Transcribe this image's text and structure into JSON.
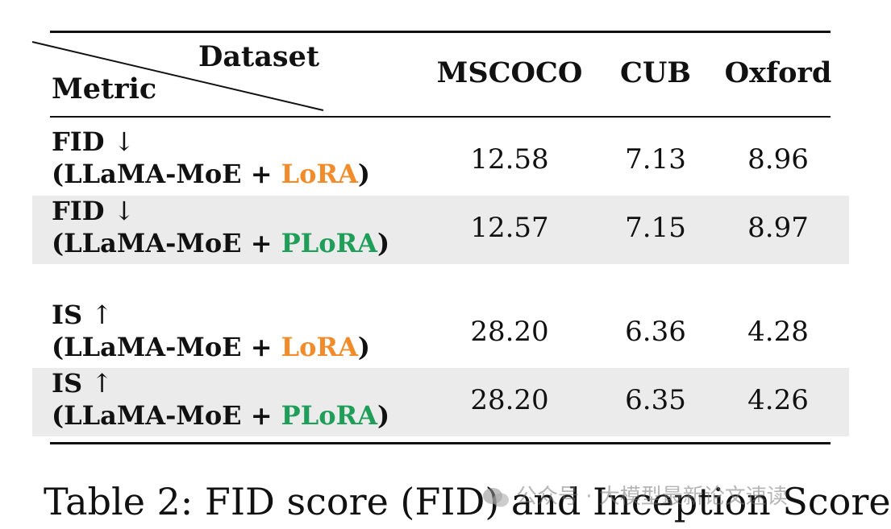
{
  "table": {
    "header": {
      "dataset_label": "Dataset",
      "metric_label": "Metric",
      "columns": [
        "MSCOCO",
        "CUB",
        "Oxford"
      ]
    },
    "rows": [
      {
        "metric": "FID",
        "arrow": "↓",
        "prefix": "(LLaMA-MoE + ",
        "method": "LoRA",
        "suffix": ")",
        "values": [
          "12.58",
          "7.13",
          "8.96"
        ],
        "shaded": false
      },
      {
        "metric": "FID",
        "arrow": "↓",
        "prefix": "(LLaMA-MoE + ",
        "method": "PLoRA",
        "suffix": ")",
        "values": [
          "12.57",
          "7.15",
          "8.97"
        ],
        "shaded": true
      },
      {
        "metric": "IS",
        "arrow": "↑",
        "prefix": "(LLaMA-MoE + ",
        "method": "LoRA",
        "suffix": ")",
        "values": [
          "28.20",
          "6.36",
          "4.28"
        ],
        "shaded": false
      },
      {
        "metric": "IS",
        "arrow": "↑",
        "prefix": "(LLaMA-MoE + ",
        "method": "PLoRA",
        "suffix": ")",
        "values": [
          "28.20",
          "6.35",
          "4.26"
        ],
        "shaded": true
      }
    ],
    "colors": {
      "lora": "#f28c2b",
      "plora": "#1f9e5a",
      "shade": "#ebebeb"
    }
  },
  "caption": "Table 2: FID score (FID) and Inception Score",
  "watermark": {
    "icon": "wechat-icon",
    "text": "公众号 · 大模型最新论文速读"
  }
}
